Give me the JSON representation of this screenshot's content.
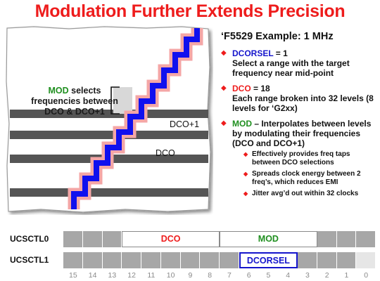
{
  "title": "Modulation Further Extends Precision",
  "diagram": {
    "mod_note": {
      "keyword": "MOD",
      "rest_line1": " selects",
      "line2": "frequencies between",
      "line3": "DCO & DCO+1"
    },
    "label_dco_plus1": "DCO+1",
    "label_dco": "DCO"
  },
  "example_title": "‘F5529 Example: 1 MHz",
  "bullets": [
    {
      "keyword": "DCORSEL",
      "value": " = 1",
      "text": "Select a range with the target frequency near mid-point",
      "color": "#1515cc"
    },
    {
      "keyword": "DCO",
      "value": " = 18",
      "text": "Each range broken into 32 levels (8 levels for ‘G2xx)",
      "color": "#ee1c1c"
    },
    {
      "keyword": "MOD",
      "value": " – Interpolates between levels by modulating their frequencies (DCO and DCO+1)",
      "text": "",
      "color": "#1f8f1f",
      "subs": [
        "Effectively provides freq taps between DCO selections",
        "Spreads clock energy between 2 freq’s, which reduces EMI",
        "Jitter avg’d out within 32 clocks"
      ]
    }
  ],
  "registers": [
    {
      "name": "UCSCTL0",
      "fields": [
        {
          "label": "DCO",
          "color": "#ee1c1c",
          "from_bit": 12,
          "to_bit": 8
        },
        {
          "label": "MOD",
          "color": "#1f8f1f",
          "from_bit": 7,
          "to_bit": 3
        }
      ]
    },
    {
      "name": "UCSCTL1",
      "fields": [
        {
          "label": "DCORSEL",
          "color": "#1515cc",
          "from_bit": 6,
          "to_bit": 4
        }
      ]
    }
  ],
  "bit_labels": [
    "15",
    "14",
    "13",
    "12",
    "11",
    "10",
    "9",
    "8",
    "7",
    "6",
    "5",
    "4",
    "3",
    "2",
    "1",
    "0"
  ]
}
